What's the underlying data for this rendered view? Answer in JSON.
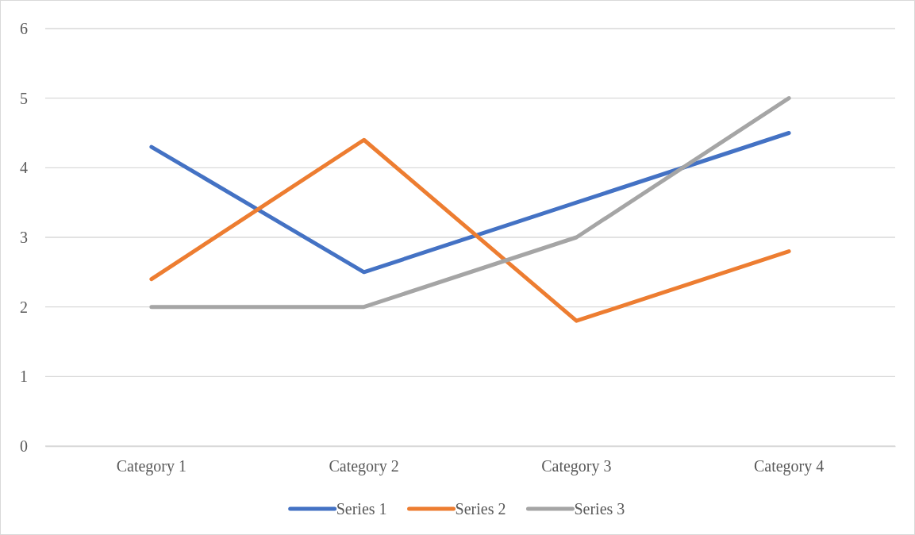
{
  "chart_data": {
    "type": "line",
    "categories": [
      "Category 1",
      "Category 2",
      "Category 3",
      "Category 4"
    ],
    "series": [
      {
        "name": "Series 1",
        "color": "#4472c4",
        "values": [
          4.3,
          2.5,
          3.5,
          4.5
        ]
      },
      {
        "name": "Series 2",
        "color": "#ed7d31",
        "values": [
          2.4,
          4.4,
          1.8,
          2.8
        ]
      },
      {
        "name": "Series 3",
        "color": "#a5a5a5",
        "values": [
          2,
          2,
          3,
          5
        ]
      }
    ],
    "ylim": [
      0,
      6
    ],
    "yticks": [
      0,
      1,
      2,
      3,
      4,
      5,
      6
    ],
    "grid": "y",
    "legend": "bottom",
    "marker": "none",
    "line_style": "solid"
  }
}
